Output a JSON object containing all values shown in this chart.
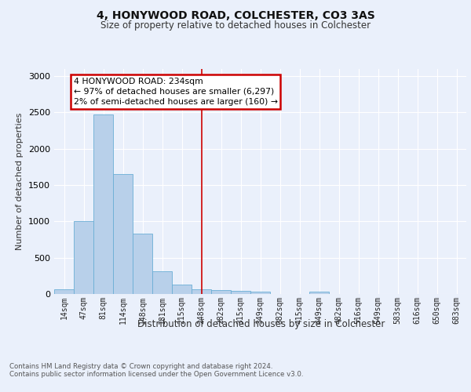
{
  "title1": "4, HONYWOOD ROAD, COLCHESTER, CO3 3AS",
  "title2": "Size of property relative to detached houses in Colchester",
  "xlabel": "Distribution of detached houses by size in Colchester",
  "ylabel": "Number of detached properties",
  "bin_labels": [
    "14sqm",
    "47sqm",
    "81sqm",
    "114sqm",
    "148sqm",
    "181sqm",
    "215sqm",
    "248sqm",
    "282sqm",
    "315sqm",
    "349sqm",
    "382sqm",
    "415sqm",
    "449sqm",
    "482sqm",
    "516sqm",
    "549sqm",
    "583sqm",
    "616sqm",
    "650sqm",
    "683sqm"
  ],
  "bar_values": [
    60,
    1000,
    2470,
    1650,
    830,
    310,
    130,
    60,
    50,
    45,
    30,
    0,
    0,
    30,
    0,
    0,
    0,
    0,
    0,
    0,
    0
  ],
  "bar_color": "#b8d0ea",
  "bar_edge_color": "#6baed6",
  "vline_x": 7.0,
  "vline_color": "#cc0000",
  "annotation_text": "4 HONYWOOD ROAD: 234sqm\n← 97% of detached houses are smaller (6,297)\n2% of semi-detached houses are larger (160) →",
  "annotation_box_color": "#cc0000",
  "annotation_bg": "#ffffff",
  "ylim": [
    0,
    3100
  ],
  "yticks": [
    0,
    500,
    1000,
    1500,
    2000,
    2500,
    3000
  ],
  "footer_text": "Contains HM Land Registry data © Crown copyright and database right 2024.\nContains public sector information licensed under the Open Government Licence v3.0.",
  "bg_color": "#eaf0fb",
  "grid_color": "#ffffff"
}
